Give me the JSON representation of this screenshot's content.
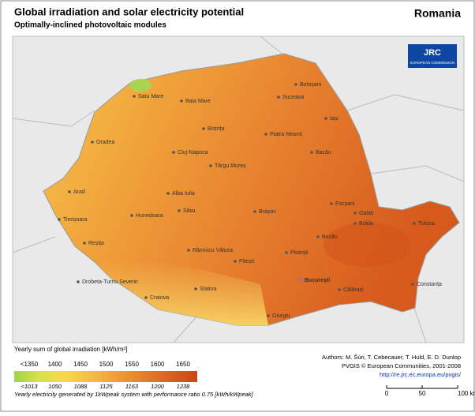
{
  "header": {
    "title": "Global irradiation and solar electricity potential",
    "subtitle": "Optimally-inclined photovoltaic modules",
    "country": "Romania"
  },
  "logo": {
    "name": "JRC",
    "org": "EUROPEAN COMMISSION"
  },
  "cities": [
    "Satu Mare",
    "Baia Mare",
    "Botoșani",
    "Suceava",
    "Iași",
    "Oradea",
    "Bistrița",
    "Piatra Neamț",
    "Cluj-Napoca",
    "Bacău",
    "Târgu Mureș",
    "Arad",
    "Alba Iulia",
    "Focșani",
    "Timișoara",
    "Sibiu",
    "Brașov",
    "Galați",
    "Hunedoara",
    "Brăila",
    "Tulcea",
    "Reșița",
    "Buzău",
    "Râmnicu Vâlcea",
    "Pitești",
    "Ploiești",
    "Drobeta-Turnu Severin",
    "București",
    "Constanța",
    "Slatina",
    "Călărași",
    "Craiova",
    "Giurgiu"
  ],
  "legend": {
    "title": "Yearly sum of global irradiation [kWh/m²]",
    "irradiation_labels": [
      "<1350",
      "1400",
      "1450",
      "1500",
      "1550",
      "1600",
      "1650"
    ],
    "electricity_labels": [
      "<1013",
      "1050",
      "1088",
      "1125",
      "1163",
      "1200",
      "1238"
    ],
    "note": "Yearly electricity generated by 1kWpeak system with performance ratio 0.75 [kWh/kWpeak]"
  },
  "credits": {
    "authors": "Authors: M. Šúri, T. Cebecauer, T. Huld, E. D. Dunlop",
    "copyright": "PVGIS © European Communities, 2001-2008",
    "url": "http://re.jrc.ec.europa.eu/pvgis/"
  },
  "scale_bar": {
    "labels": [
      "0",
      "50",
      "100 km"
    ]
  }
}
